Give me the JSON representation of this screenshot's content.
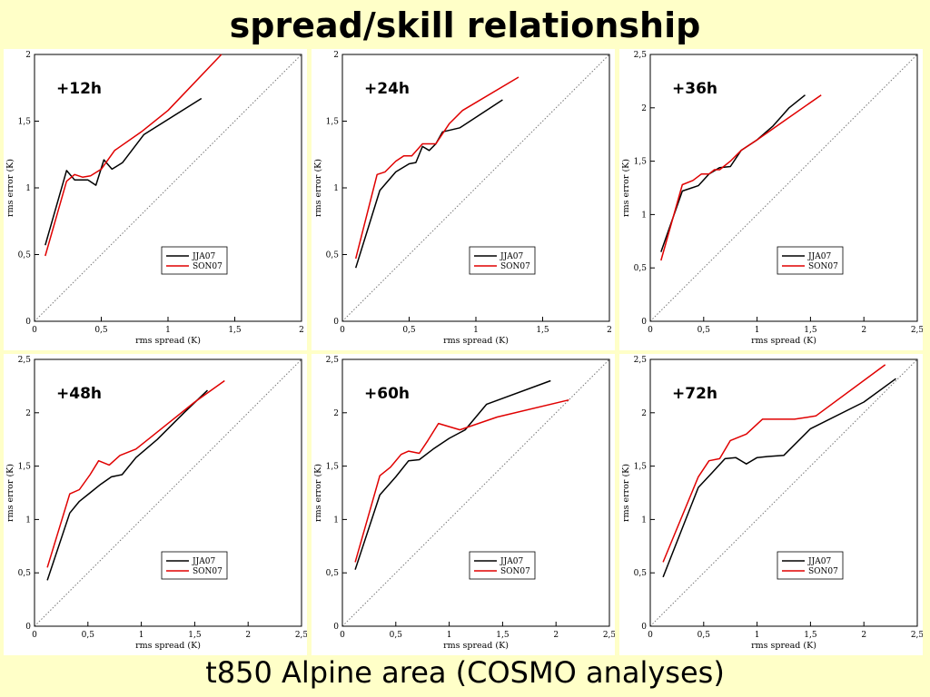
{
  "title": "spread/skill relationship",
  "subtitle": "t850  Alpine area (COSMO analyses)",
  "colors": {
    "background": "#ffffc8",
    "jja": "#000000",
    "son": "#e00000",
    "diagonal": "#777777"
  },
  "chart_data": [
    {
      "type": "line",
      "lead_label": "+12h",
      "xlabel": "rms spread (K)",
      "ylabel": "rms error (K)",
      "xlim": [
        0,
        2
      ],
      "ylim": [
        0,
        2
      ],
      "xticks": [
        0,
        0.5,
        1,
        1.5,
        2
      ],
      "yticks": [
        0,
        0.5,
        1,
        1.5,
        2
      ],
      "xtick_labels": [
        "0",
        "0,5",
        "1",
        "1,5",
        "2"
      ],
      "ytick_labels": [
        "0",
        "0,5",
        "1",
        "1,5",
        "2"
      ],
      "legend_position": "bottom-right",
      "series": [
        {
          "name": "JJA07",
          "color": "#000000",
          "x": [
            0.08,
            0.24,
            0.3,
            0.4,
            0.46,
            0.52,
            0.58,
            0.66,
            0.82,
            1.25
          ],
          "y": [
            0.57,
            1.13,
            1.06,
            1.06,
            1.02,
            1.21,
            1.14,
            1.19,
            1.4,
            1.67
          ]
        },
        {
          "name": "SON07",
          "color": "#e00000",
          "x": [
            0.08,
            0.24,
            0.3,
            0.36,
            0.42,
            0.5,
            0.6,
            0.8,
            1.0,
            1.4
          ],
          "y": [
            0.49,
            1.05,
            1.1,
            1.08,
            1.09,
            1.14,
            1.28,
            1.42,
            1.58,
            2.0
          ]
        }
      ]
    },
    {
      "type": "line",
      "lead_label": "+24h",
      "xlabel": "rms spread (K)",
      "ylabel": "rms error (K)",
      "xlim": [
        0,
        2
      ],
      "ylim": [
        0,
        2
      ],
      "xticks": [
        0,
        0.5,
        1,
        1.5,
        2
      ],
      "yticks": [
        0,
        0.5,
        1,
        1.5,
        2
      ],
      "xtick_labels": [
        "0",
        "0,5",
        "1",
        "1,5",
        "2"
      ],
      "ytick_labels": [
        "0",
        "0,5",
        "1",
        "1,5",
        "2"
      ],
      "legend_position": "bottom-right",
      "series": [
        {
          "name": "JJA07",
          "color": "#000000",
          "x": [
            0.1,
            0.28,
            0.4,
            0.5,
            0.55,
            0.6,
            0.65,
            0.7,
            0.75,
            0.88,
            1.2
          ],
          "y": [
            0.4,
            0.98,
            1.12,
            1.18,
            1.19,
            1.31,
            1.28,
            1.33,
            1.42,
            1.45,
            1.66
          ]
        },
        {
          "name": "SON07",
          "color": "#e00000",
          "x": [
            0.1,
            0.26,
            0.32,
            0.4,
            0.46,
            0.52,
            0.6,
            0.7,
            0.8,
            0.9,
            1.32
          ],
          "y": [
            0.47,
            1.1,
            1.12,
            1.2,
            1.24,
            1.24,
            1.33,
            1.33,
            1.48,
            1.58,
            1.83
          ]
        }
      ]
    },
    {
      "type": "line",
      "lead_label": "+36h",
      "xlabel": "rms spread (K)",
      "ylabel": "rms error (K)",
      "xlim": [
        0,
        2.5
      ],
      "ylim": [
        0,
        2.5
      ],
      "xticks": [
        0,
        0.5,
        1,
        1.5,
        2,
        2.5
      ],
      "yticks": [
        0,
        0.5,
        1,
        1.5,
        2,
        2.5
      ],
      "xtick_labels": [
        "0",
        "0,5",
        "1",
        "1,5",
        "2",
        "2,5"
      ],
      "ytick_labels": [
        "0",
        "0,5",
        "1",
        "1,5",
        "2",
        "2,5"
      ],
      "legend_position": "bottom-right",
      "series": [
        {
          "name": "JJA07",
          "color": "#000000",
          "x": [
            0.1,
            0.3,
            0.45,
            0.55,
            0.65,
            0.75,
            0.85,
            1.0,
            1.15,
            1.3,
            1.45
          ],
          "y": [
            0.65,
            1.22,
            1.27,
            1.38,
            1.44,
            1.45,
            1.6,
            1.7,
            1.83,
            2.0,
            2.12
          ]
        },
        {
          "name": "SON07",
          "color": "#e00000",
          "x": [
            0.1,
            0.3,
            0.4,
            0.48,
            0.55,
            0.6,
            0.65,
            0.75,
            0.85,
            1.0,
            1.2,
            1.6
          ],
          "y": [
            0.57,
            1.28,
            1.32,
            1.38,
            1.38,
            1.42,
            1.42,
            1.5,
            1.6,
            1.7,
            1.84,
            2.12
          ]
        }
      ]
    },
    {
      "type": "line",
      "lead_label": "+48h",
      "xlabel": "rms spread (K)",
      "ylabel": "rms error (K)",
      "xlim": [
        0,
        2.5
      ],
      "ylim": [
        0,
        2.5
      ],
      "xticks": [
        0,
        0.5,
        1,
        1.5,
        2,
        2.5
      ],
      "yticks": [
        0,
        0.5,
        1,
        1.5,
        2,
        2.5
      ],
      "xtick_labels": [
        "0",
        "0,5",
        "1",
        "1,5",
        "2",
        "2,5"
      ],
      "ytick_labels": [
        "0",
        "0,5",
        "1",
        "1,5",
        "2",
        "2,5"
      ],
      "legend_position": "bottom-right",
      "series": [
        {
          "name": "JJA07",
          "color": "#000000",
          "x": [
            0.12,
            0.33,
            0.42,
            0.52,
            0.62,
            0.72,
            0.82,
            0.95,
            1.15,
            1.4,
            1.62
          ],
          "y": [
            0.43,
            1.06,
            1.17,
            1.25,
            1.33,
            1.4,
            1.42,
            1.58,
            1.75,
            2.0,
            2.21
          ]
        },
        {
          "name": "SON07",
          "color": "#e00000",
          "x": [
            0.12,
            0.33,
            0.42,
            0.52,
            0.6,
            0.7,
            0.8,
            0.95,
            1.1,
            1.25,
            1.5,
            1.78
          ],
          "y": [
            0.55,
            1.24,
            1.28,
            1.42,
            1.55,
            1.51,
            1.6,
            1.66,
            1.78,
            1.9,
            2.1,
            2.3
          ]
        }
      ]
    },
    {
      "type": "line",
      "lead_label": "+60h",
      "xlabel": "rms spread (K)",
      "ylabel": "rms error (K)",
      "xlim": [
        0,
        2.5
      ],
      "ylim": [
        0,
        2.5
      ],
      "xticks": [
        0,
        0.5,
        1,
        1.5,
        2,
        2.5
      ],
      "yticks": [
        0,
        0.5,
        1,
        1.5,
        2,
        2.5
      ],
      "xtick_labels": [
        "0",
        "0,5",
        "1",
        "1,5",
        "2",
        "2,5"
      ],
      "ytick_labels": [
        "0",
        "0,5",
        "1",
        "1,5",
        "2",
        "2,5"
      ],
      "legend_position": "bottom-right",
      "series": [
        {
          "name": "JJA07",
          "color": "#000000",
          "x": [
            0.12,
            0.35,
            0.5,
            0.62,
            0.72,
            0.85,
            1.0,
            1.15,
            1.35,
            1.95
          ],
          "y": [
            0.53,
            1.23,
            1.4,
            1.55,
            1.56,
            1.66,
            1.76,
            1.84,
            2.08,
            2.3
          ]
        },
        {
          "name": "SON07",
          "color": "#e00000",
          "x": [
            0.12,
            0.35,
            0.45,
            0.55,
            0.62,
            0.72,
            0.8,
            0.9,
            1.1,
            1.45,
            2.12
          ],
          "y": [
            0.6,
            1.41,
            1.49,
            1.61,
            1.64,
            1.62,
            1.74,
            1.9,
            1.84,
            1.96,
            2.12
          ]
        }
      ]
    },
    {
      "type": "line",
      "lead_label": "+72h",
      "xlabel": "rms spread (K)",
      "ylabel": "rms error (K)",
      "xlim": [
        0,
        2.5
      ],
      "ylim": [
        0,
        2.5
      ],
      "xticks": [
        0,
        0.5,
        1,
        1.5,
        2,
        2.5
      ],
      "yticks": [
        0,
        0.5,
        1,
        1.5,
        2,
        2.5
      ],
      "xtick_labels": [
        "0",
        "0,5",
        "1",
        "1,5",
        "2",
        "2,5"
      ],
      "ytick_labels": [
        "0",
        "0,5",
        "1",
        "1,5",
        "2",
        "2,5"
      ],
      "legend_position": "bottom-right",
      "series": [
        {
          "name": "JJA07",
          "color": "#000000",
          "x": [
            0.12,
            0.45,
            0.58,
            0.7,
            0.8,
            0.9,
            1.0,
            1.1,
            1.25,
            1.5,
            2.0,
            2.3
          ],
          "y": [
            0.46,
            1.3,
            1.44,
            1.57,
            1.58,
            1.52,
            1.58,
            1.59,
            1.6,
            1.85,
            2.1,
            2.32
          ]
        },
        {
          "name": "SON07",
          "color": "#e00000",
          "x": [
            0.12,
            0.45,
            0.55,
            0.65,
            0.75,
            0.9,
            1.05,
            1.2,
            1.35,
            1.55,
            2.2
          ],
          "y": [
            0.6,
            1.4,
            1.55,
            1.57,
            1.74,
            1.8,
            1.94,
            1.94,
            1.94,
            1.97,
            2.45
          ]
        }
      ]
    }
  ]
}
